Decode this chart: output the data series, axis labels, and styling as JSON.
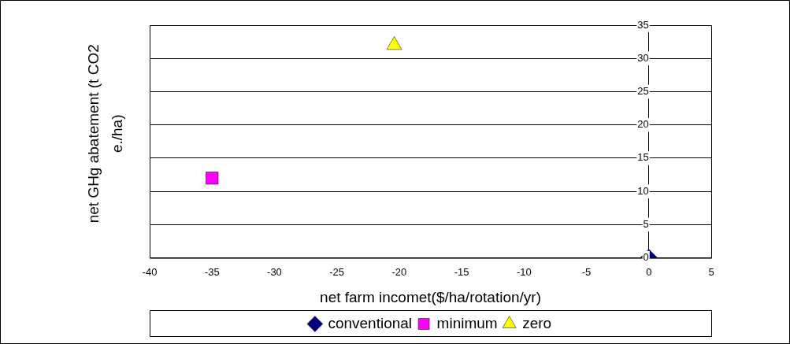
{
  "chart_data": {
    "type": "scatter",
    "xlabel": "net farm incomet($/ha/rotation/yr)",
    "ylabel": "net GHg abatement (t CO2 e./ha)",
    "series": [
      {
        "name": "conventional",
        "color": "#000080",
        "marker": "diamond",
        "x": [
          0
        ],
        "values": [
          0
        ]
      },
      {
        "name": "minimum",
        "color": "#ff00ff",
        "marker": "square",
        "x": [
          -35
        ],
        "values": [
          12
        ]
      },
      {
        "name": "zero",
        "color": "#ffff00",
        "marker": "triangle",
        "x": [
          -20.4
        ],
        "values": [
          32
        ]
      }
    ],
    "xlim": [
      -40,
      5
    ],
    "xticks": [
      -40,
      -35,
      -30,
      -25,
      -20,
      -15,
      -10,
      -5,
      0,
      5
    ],
    "ylim": [
      0,
      35
    ],
    "yticks": [
      0,
      5,
      10,
      15,
      20,
      25,
      30,
      35
    ],
    "grid": "y",
    "legend": "bottom"
  }
}
